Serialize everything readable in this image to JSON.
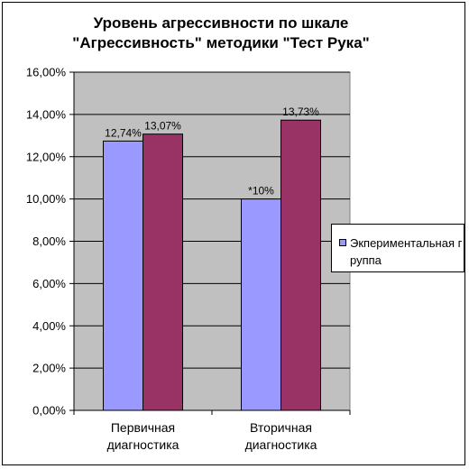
{
  "chart_data": {
    "type": "bar",
    "title": "Уровень агрессивности по шкале \"Агрессивность\" методики \"Тест Рука\"",
    "title_lines": [
      "Уровень агрессивности по шкале",
      "\"Агрессивность\" методики \"Тест Рука\""
    ],
    "categories": [
      "Первичная диагностика",
      "Вторичная диагностика"
    ],
    "category_lines": [
      [
        "Первичная",
        "диагностика"
      ],
      [
        "Вторичная",
        "диагностика"
      ]
    ],
    "series": [
      {
        "name": "Экпериментальная группа",
        "values": [
          12.74,
          10.0
        ],
        "labels": [
          "12,74%",
          "*10%"
        ],
        "color": "#9999ff"
      },
      {
        "values": [
          13.07,
          13.73
        ],
        "labels": [
          "13,07%",
          "13,73%"
        ],
        "color": "#993366"
      }
    ],
    "ylim": [
      0,
      16
    ],
    "y_ticks": [
      0,
      2,
      4,
      6,
      8,
      10,
      12,
      14,
      16
    ],
    "y_tick_labels": [
      "0,00%",
      "2,00%",
      "4,00%",
      "6,00%",
      "8,00%",
      "10,00%",
      "12,00%",
      "14,00%",
      "16,00%"
    ],
    "grid": true,
    "legend_position": "right",
    "plot_background": "#c0c0c0"
  },
  "legend": {
    "label": "Экпериментальная группа",
    "color": "#9999ff"
  }
}
